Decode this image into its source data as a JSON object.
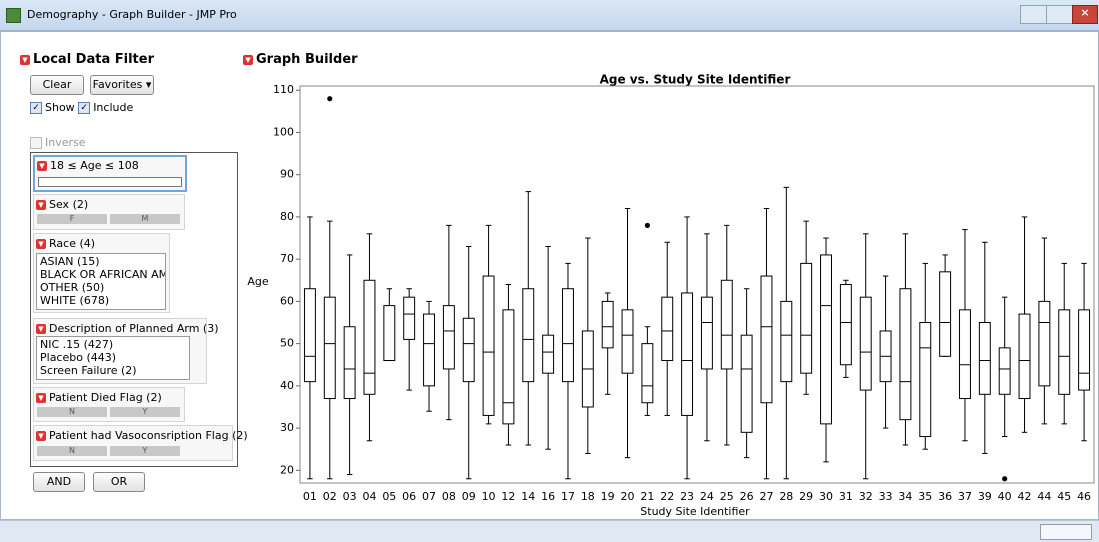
{
  "window": {
    "title": "Demography - Graph Builder - JMP Pro"
  },
  "filter": {
    "title": "Local Data Filter",
    "clear": "Clear",
    "favorites": "Favorites",
    "show": "Show",
    "include": "Include",
    "inverse": "Inverse",
    "age": "18 ≤ Age ≤ 108",
    "sex": {
      "title": "Sex (2)",
      "levels": [
        "F",
        "M"
      ]
    },
    "race": {
      "title": "Race (4)",
      "items": [
        "ASIAN (15)",
        "BLACK OR AFRICAN AMEI",
        "OTHER (50)",
        "WHITE (678)"
      ]
    },
    "arm": {
      "title": "Description of Planned Arm (3)",
      "items": [
        "NIC .15 (427)",
        "Placebo (443)",
        "Screen Failure (2)"
      ]
    },
    "died": {
      "title": "Patient Died Flag (2)",
      "levels": [
        "N",
        "Y"
      ]
    },
    "vaso": {
      "title": "Patient had Vasoconsription Flag (2)",
      "levels": [
        "N",
        "Y"
      ]
    },
    "and": "AND",
    "or": "OR"
  },
  "graph_builder": {
    "title": "Graph Builder"
  },
  "chart_data": {
    "type": "box",
    "title": "Age vs. Study Site Identifier",
    "x_label": "Study Site Identifier",
    "y_label": "Age",
    "ylim": [
      17,
      111
    ],
    "yticks": [
      20,
      30,
      40,
      50,
      60,
      70,
      80,
      90,
      100,
      110
    ],
    "color": "#000000",
    "categories": [
      "01",
      "02",
      "03",
      "04",
      "05",
      "06",
      "07",
      "08",
      "09",
      "10",
      "12",
      "14",
      "16",
      "17",
      "18",
      "19",
      "20",
      "21",
      "22",
      "23",
      "24",
      "25",
      "26",
      "27",
      "28",
      "29",
      "30",
      "31",
      "32",
      "33",
      "34",
      "35",
      "36",
      "37",
      "39",
      "40",
      "42",
      "44",
      "45",
      "46"
    ],
    "boxes": [
      {
        "min": 18,
        "q1": 41,
        "median": 47,
        "q3": 63,
        "max": 80
      },
      {
        "min": 18,
        "q1": 37,
        "median": 50,
        "q3": 61,
        "max": 79,
        "outliers": [
          108
        ]
      },
      {
        "min": 19,
        "q1": 37,
        "median": 44,
        "q3": 54,
        "max": 71
      },
      {
        "min": 27,
        "q1": 38,
        "median": 43,
        "q3": 65,
        "max": 76
      },
      {
        "min": 46,
        "q1": 46,
        "median": 46,
        "q3": 59,
        "max": 63
      },
      {
        "min": 39,
        "q1": 51,
        "median": 57,
        "q3": 61,
        "max": 63
      },
      {
        "min": 34,
        "q1": 40,
        "median": 50,
        "q3": 57,
        "max": 60
      },
      {
        "min": 32,
        "q1": 44,
        "median": 53,
        "q3": 59,
        "max": 78
      },
      {
        "min": 18,
        "q1": 41,
        "median": 50,
        "q3": 56,
        "max": 73
      },
      {
        "min": 31,
        "q1": 33,
        "median": 48,
        "q3": 66,
        "max": 78
      },
      {
        "min": 26,
        "q1": 31,
        "median": 36,
        "q3": 58,
        "max": 64
      },
      {
        "min": 26,
        "q1": 41,
        "median": 51,
        "q3": 63,
        "max": 86
      },
      {
        "min": 25,
        "q1": 43,
        "median": 48,
        "q3": 52,
        "max": 73
      },
      {
        "min": 18,
        "q1": 41,
        "median": 50,
        "q3": 63,
        "max": 69
      },
      {
        "min": 24,
        "q1": 35,
        "median": 44,
        "q3": 53,
        "max": 75
      },
      {
        "min": 38,
        "q1": 49,
        "median": 54,
        "q3": 60,
        "max": 62
      },
      {
        "min": 23,
        "q1": 43,
        "median": 52,
        "q3": 58,
        "max": 82
      },
      {
        "min": 33,
        "q1": 36,
        "median": 40,
        "q3": 50,
        "max": 54,
        "outliers": [
          78
        ]
      },
      {
        "min": 33,
        "q1": 46,
        "median": 53,
        "q3": 61,
        "max": 74
      },
      {
        "min": 18,
        "q1": 33,
        "median": 46,
        "q3": 62,
        "max": 80
      },
      {
        "min": 27,
        "q1": 44,
        "median": 55,
        "q3": 61,
        "max": 76
      },
      {
        "min": 26,
        "q1": 44,
        "median": 52,
        "q3": 65,
        "max": 78
      },
      {
        "min": 23,
        "q1": 29,
        "median": 44,
        "q3": 52,
        "max": 63
      },
      {
        "min": 18,
        "q1": 36,
        "median": 54,
        "q3": 66,
        "max": 82
      },
      {
        "min": 18,
        "q1": 41,
        "median": 52,
        "q3": 60,
        "max": 87
      },
      {
        "min": 38,
        "q1": 43,
        "median": 52,
        "q3": 69,
        "max": 79
      },
      {
        "min": 22,
        "q1": 31,
        "median": 59,
        "q3": 71,
        "max": 75
      },
      {
        "min": 42,
        "q1": 45,
        "median": 55,
        "q3": 64,
        "max": 65
      },
      {
        "min": 18,
        "q1": 39,
        "median": 48,
        "q3": 61,
        "max": 76
      },
      {
        "min": 30,
        "q1": 41,
        "median": 47,
        "q3": 53,
        "max": 66
      },
      {
        "min": 26,
        "q1": 32,
        "median": 41,
        "q3": 63,
        "max": 76
      },
      {
        "min": 25,
        "q1": 28,
        "median": 49,
        "q3": 55,
        "max": 69
      },
      {
        "min": 47,
        "q1": 47,
        "median": 55,
        "q3": 67,
        "max": 71
      },
      {
        "min": 27,
        "q1": 37,
        "median": 45,
        "q3": 58,
        "max": 77
      },
      {
        "min": 24,
        "q1": 38,
        "median": 46,
        "q3": 55,
        "max": 74
      },
      {
        "min": 28,
        "q1": 38,
        "median": 44,
        "q3": 49,
        "max": 61,
        "outliers": [
          18
        ]
      },
      {
        "min": 29,
        "q1": 37,
        "median": 46,
        "q3": 57,
        "max": 80
      },
      {
        "min": 31,
        "q1": 40,
        "median": 55,
        "q3": 60,
        "max": 75
      },
      {
        "min": 31,
        "q1": 38,
        "median": 47,
        "q3": 58,
        "max": 69
      },
      {
        "min": 27,
        "q1": 39,
        "median": 43,
        "q3": 58,
        "max": 69
      }
    ]
  }
}
